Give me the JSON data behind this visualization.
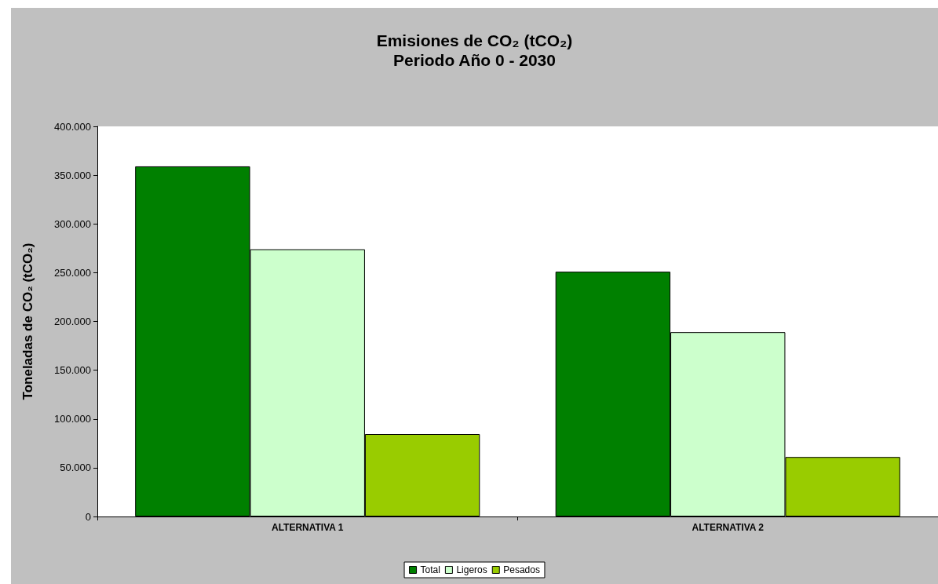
{
  "chart_data": {
    "type": "bar",
    "title": "Emisiones de CO₂ (tCO₂)",
    "subtitle": "Periodo Año 0 - 2030",
    "ylabel": "Toneladas de CO₂ (tCO₂)",
    "categories": [
      "ALTERNATIVA 1",
      "ALTERNATIVA 2"
    ],
    "series": [
      {
        "name": "Total",
        "color": "#008000",
        "values": [
          359000,
          251000
        ]
      },
      {
        "name": "Ligeros",
        "color": "#ccffcc",
        "values": [
          274000,
          189000
        ]
      },
      {
        "name": "Pesados",
        "color": "#99cc00",
        "values": [
          84500,
          61000
        ]
      }
    ],
    "ylim": [
      0,
      400000
    ],
    "yticks": [
      {
        "value": 0,
        "label": "0"
      },
      {
        "value": 50000,
        "label": "50.000"
      },
      {
        "value": 100000,
        "label": "100.000"
      },
      {
        "value": 150000,
        "label": "150.000"
      },
      {
        "value": 200000,
        "label": "200.000"
      },
      {
        "value": 250000,
        "label": "250.000"
      },
      {
        "value": 300000,
        "label": "300.000"
      },
      {
        "value": 350000,
        "label": "350.000"
      },
      {
        "value": 400000,
        "label": "400.000"
      }
    ],
    "grid": false,
    "legend": "bottom"
  }
}
